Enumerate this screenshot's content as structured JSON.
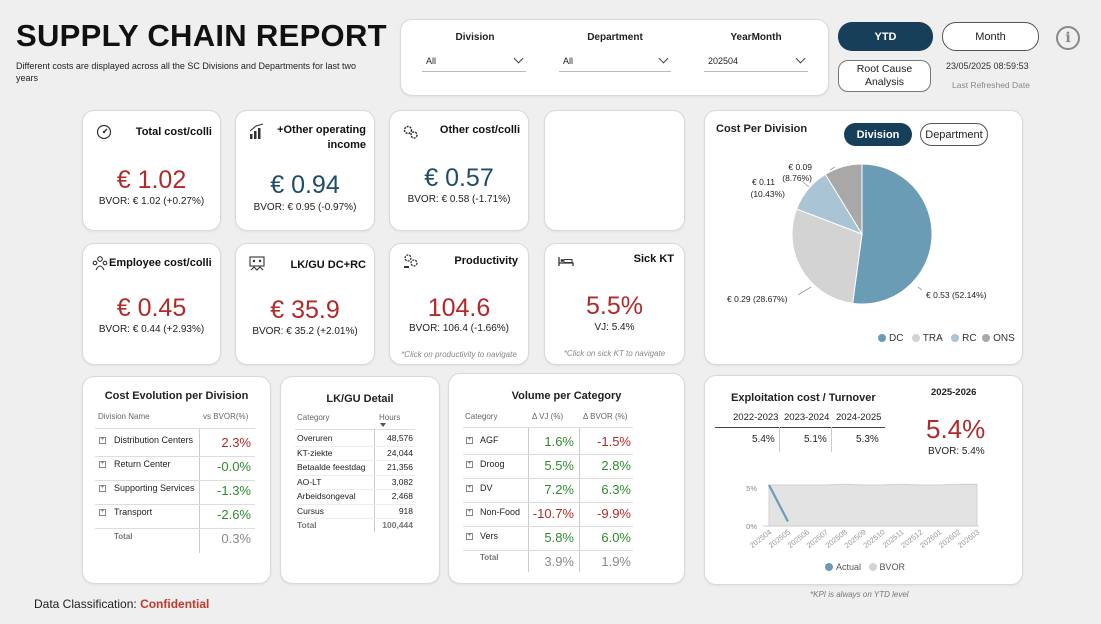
{
  "header": {
    "title": "SUPPLY CHAIN REPORT",
    "subtitle": "Different costs are displayed across all the SC Divisions and Departments for last two years"
  },
  "filters": {
    "division": {
      "label": "Division",
      "value": "All"
    },
    "department": {
      "label": "Department",
      "value": "All"
    },
    "yearmonth": {
      "label": "YearMonth",
      "value": "202504"
    }
  },
  "buttons": {
    "ytd": "YTD",
    "month": "Month",
    "root_cause": "Root Cause Analysis",
    "info": "i"
  },
  "refresh": {
    "datetime": "23/05/2025 08:59:53",
    "label": "Last Refreshed Date"
  },
  "kpis": {
    "total_cost": {
      "title": "Total cost/colli",
      "value": "€ 1.02",
      "bvor": "BVOR: € 1.02 (+0.27%)"
    },
    "other_income": {
      "title": "+Other operating income",
      "value": "€ 0.94",
      "bvor": "BVOR: € 0.95 (-0.97%)"
    },
    "other_cost": {
      "title": "Other cost/colli",
      "value": "€ 0.57",
      "bvor": "BVOR: € 0.58 (-1.71%)"
    },
    "employee_cost": {
      "title": "Employee cost/colli",
      "value": "€ 0.45",
      "bvor": "BVOR: € 0.44 (+2.93%)"
    },
    "lkgu": {
      "title": "LK/GU DC+RC",
      "value": "€ 35.9",
      "bvor": "BVOR: € 35.2 (+2.01%)"
    },
    "productivity": {
      "title": "Productivity",
      "value": "104.6",
      "bvor": "BVOR: 106.4 (-1.66%)",
      "note": "*Click on productivity to navigate"
    },
    "sick": {
      "title": "Sick KT",
      "value": "5.5%",
      "bvor": "VJ: 5.4%",
      "note": "*Click on sick KT to navigate"
    }
  },
  "pie": {
    "title": "Cost Per Division",
    "toggle_division": "Division",
    "toggle_department": "Department",
    "labels": {
      "dc": "€ 0.53 (52.14%)",
      "tra": "€ 0.29 (28.67%)",
      "rc_value": "€ 0.11",
      "rc_pct": "(10.43%)",
      "ons_value": "€ 0.09",
      "ons_pct": "(8.76%)"
    },
    "legend": [
      "DC",
      "TRA",
      "RC",
      "ONS"
    ],
    "colors": [
      "#6b9cb6",
      "#d3d3d3",
      "#a9c4d4",
      "#a8a8a8"
    ]
  },
  "chart_data": [
    {
      "type": "pie",
      "title": "Cost Per Division",
      "categories": [
        "DC",
        "TRA",
        "RC",
        "ONS"
      ],
      "values": [
        52.14,
        28.67,
        10.43,
        8.76
      ],
      "amounts": [
        0.53,
        0.29,
        0.11,
        0.09
      ],
      "legend": "bottom-right"
    },
    {
      "type": "area",
      "title": "",
      "x": [
        "202504",
        "202505",
        "202506",
        "202507",
        "202508",
        "202509",
        "202510",
        "202511",
        "202512",
        "202601",
        "202602",
        "202603"
      ],
      "series": [
        {
          "name": "Actual",
          "values": [
            5.4,
            0.6,
            null,
            null,
            null,
            null,
            null,
            null,
            null,
            null,
            null,
            null
          ]
        },
        {
          "name": "BVOR",
          "values": [
            5.4,
            5.4,
            5.4,
            5.4,
            5.5,
            5.4,
            5.4,
            5.5,
            5.4,
            5.4,
            5.5,
            5.5
          ]
        }
      ],
      "ylim": [
        0,
        5
      ],
      "yticks": [
        "0%",
        "5%"
      ],
      "legend": "bottom"
    }
  ],
  "cost_evolution": {
    "title": "Cost Evolution per Division",
    "col_name": "Division Name",
    "col_vs": "vs BVOR(%)",
    "rows": [
      {
        "name": "Distribution Centers",
        "value": "2.3%"
      },
      {
        "name": "Return Center",
        "value": "-0.0%"
      },
      {
        "name": "Supporting Services",
        "value": "-1.3%"
      },
      {
        "name": "Transport",
        "value": "-2.6%"
      }
    ],
    "total_label": "Total",
    "total_value": "0.3%"
  },
  "lkgu_detail": {
    "title": "LK/GU Detail",
    "col_category": "Category",
    "col_hours": "Hours",
    "rows": [
      {
        "name": "Overuren",
        "value": "48,576"
      },
      {
        "name": "KT-ziekte",
        "value": "24,044"
      },
      {
        "name": "Betaalde feestdag",
        "value": "21,356"
      },
      {
        "name": "AO-LT",
        "value": "3,082"
      },
      {
        "name": "Arbeidsongeval",
        "value": "2,468"
      },
      {
        "name": "Cursus",
        "value": "918"
      }
    ],
    "total_label": "Total",
    "total_value": "100,444"
  },
  "volume": {
    "title": "Volume per Category",
    "col_category": "Category",
    "col_vj": "Δ VJ (%)",
    "col_bvor": "Δ BVOR (%)",
    "rows": [
      {
        "name": "AGF",
        "vj": "1.6%",
        "bvor": "-1.5%"
      },
      {
        "name": "Droog",
        "vj": "5.5%",
        "bvor": "2.8%"
      },
      {
        "name": "DV",
        "vj": "7.2%",
        "bvor": "6.3%"
      },
      {
        "name": "Non-Food",
        "vj": "-10.7%",
        "bvor": "-9.9%"
      },
      {
        "name": "Vers",
        "vj": "5.8%",
        "bvor": "6.0%"
      }
    ],
    "total_label": "Total",
    "total_vj": "3.9%",
    "total_bvor": "1.9%"
  },
  "exploitation": {
    "title": "Exploitation cost / Turnover",
    "years": [
      "2022-2023",
      "2023-2024",
      "2024-2025"
    ],
    "year_values": [
      "5.4%",
      "5.1%",
      "5.3%"
    ],
    "current_year": "2025-2026",
    "current_value": "5.4%",
    "current_bvor": "BVOR: 5.4%",
    "y_ticks": [
      "5%",
      "0%"
    ],
    "x_ticks": [
      "202504",
      "202505",
      "202506",
      "202507",
      "202508",
      "202509",
      "202510",
      "202511",
      "202512",
      "202601",
      "202602",
      "202603"
    ],
    "legend_actual": "Actual",
    "legend_bvor": "BVOR",
    "note": "*KPI is always on YTD level"
  },
  "footer": {
    "label": "Data Classification:",
    "value": "Confidential"
  }
}
